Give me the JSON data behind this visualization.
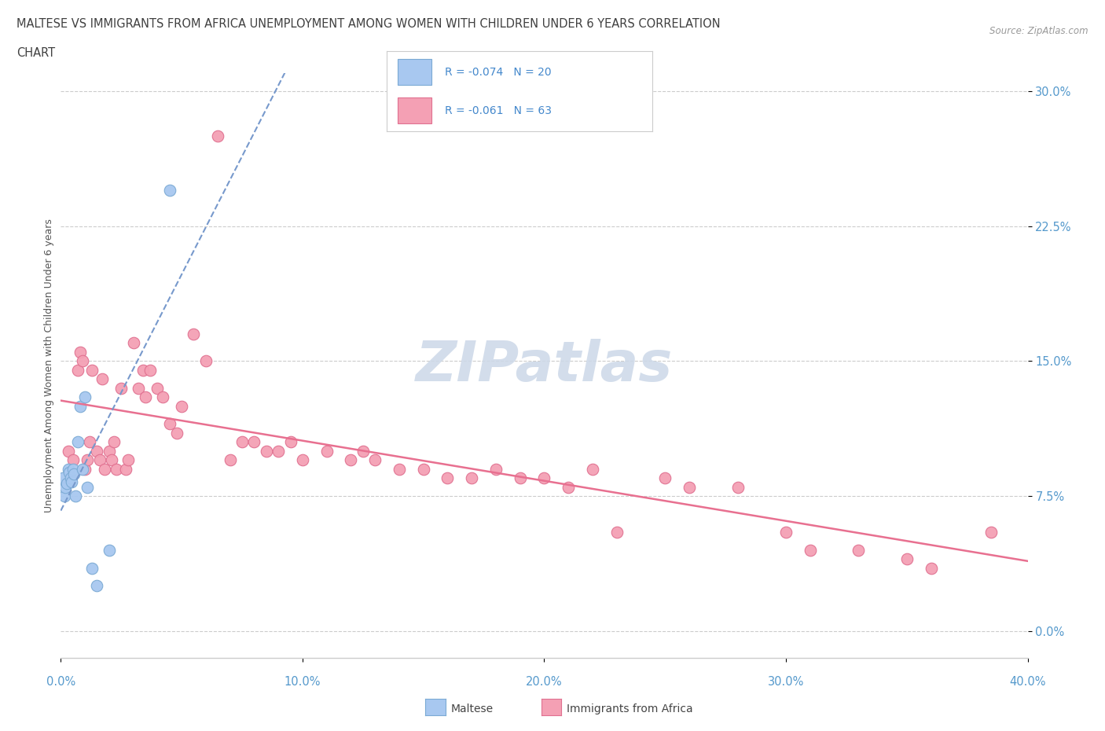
{
  "title_line1": "MALTESE VS IMMIGRANTS FROM AFRICA UNEMPLOYMENT AMONG WOMEN WITH CHILDREN UNDER 6 YEARS CORRELATION",
  "title_line2": "CHART",
  "source_text": "Source: ZipAtlas.com",
  "ytick_values": [
    0.0,
    7.5,
    15.0,
    22.5,
    30.0
  ],
  "xtick_values": [
    0.0,
    10.0,
    20.0,
    30.0,
    40.0
  ],
  "xtick_labels": [
    "0.0%",
    "10.0%",
    "20.0%",
    "30.0%",
    "40.0%"
  ],
  "ytick_labels": [
    "0.0%",
    "7.5%",
    "15.0%",
    "22.5%",
    "30.0%"
  ],
  "xmin": 0.0,
  "xmax": 40.0,
  "ymin": -1.5,
  "ymax": 31.0,
  "maltese_color": "#a8c8f0",
  "africa_color": "#f4a0b4",
  "maltese_edge": "#7baad4",
  "africa_edge": "#e07090",
  "trend_maltese_color": "#7799cc",
  "trend_africa_color": "#e87090",
  "watermark_color": "#ccd8e8",
  "title_color": "#404040",
  "axis_label_color": "#5599cc",
  "legend_text_color": "#4488cc",
  "maltese_x": [
    0.1,
    0.15,
    0.2,
    0.25,
    0.3,
    0.35,
    0.4,
    0.45,
    0.5,
    0.55,
    0.6,
    0.7,
    0.8,
    0.9,
    1.0,
    1.1,
    1.3,
    1.5,
    2.0,
    4.5
  ],
  "maltese_y": [
    8.5,
    7.5,
    8.0,
    8.2,
    9.0,
    8.8,
    8.5,
    8.3,
    9.0,
    8.7,
    7.5,
    10.5,
    12.5,
    9.0,
    13.0,
    8.0,
    3.5,
    2.5,
    4.5,
    24.5
  ],
  "africa_x": [
    0.3,
    0.5,
    0.7,
    0.8,
    0.9,
    1.0,
    1.1,
    1.2,
    1.3,
    1.5,
    1.6,
    1.7,
    1.8,
    2.0,
    2.1,
    2.2,
    2.3,
    2.5,
    2.7,
    2.8,
    3.0,
    3.2,
    3.4,
    3.5,
    3.7,
    4.0,
    4.2,
    4.5,
    4.8,
    5.0,
    5.5,
    6.0,
    6.5,
    7.0,
    7.5,
    8.0,
    8.5,
    9.0,
    9.5,
    10.0,
    11.0,
    12.0,
    12.5,
    13.0,
    14.0,
    15.0,
    16.0,
    17.0,
    18.0,
    19.0,
    20.0,
    21.0,
    22.0,
    23.0,
    25.0,
    26.0,
    28.0,
    30.0,
    31.0,
    33.0,
    35.0,
    36.0,
    38.5
  ],
  "africa_y": [
    10.0,
    9.5,
    14.5,
    15.5,
    15.0,
    9.0,
    9.5,
    10.5,
    14.5,
    10.0,
    9.5,
    14.0,
    9.0,
    10.0,
    9.5,
    10.5,
    9.0,
    13.5,
    9.0,
    9.5,
    16.0,
    13.5,
    14.5,
    13.0,
    14.5,
    13.5,
    13.0,
    11.5,
    11.0,
    12.5,
    16.5,
    15.0,
    27.5,
    9.5,
    10.5,
    10.5,
    10.0,
    10.0,
    10.5,
    9.5,
    10.0,
    9.5,
    10.0,
    9.5,
    9.0,
    9.0,
    8.5,
    8.5,
    9.0,
    8.5,
    8.5,
    8.0,
    9.0,
    5.5,
    8.5,
    8.0,
    8.0,
    5.5,
    4.5,
    4.5,
    4.0,
    3.5,
    5.5
  ]
}
